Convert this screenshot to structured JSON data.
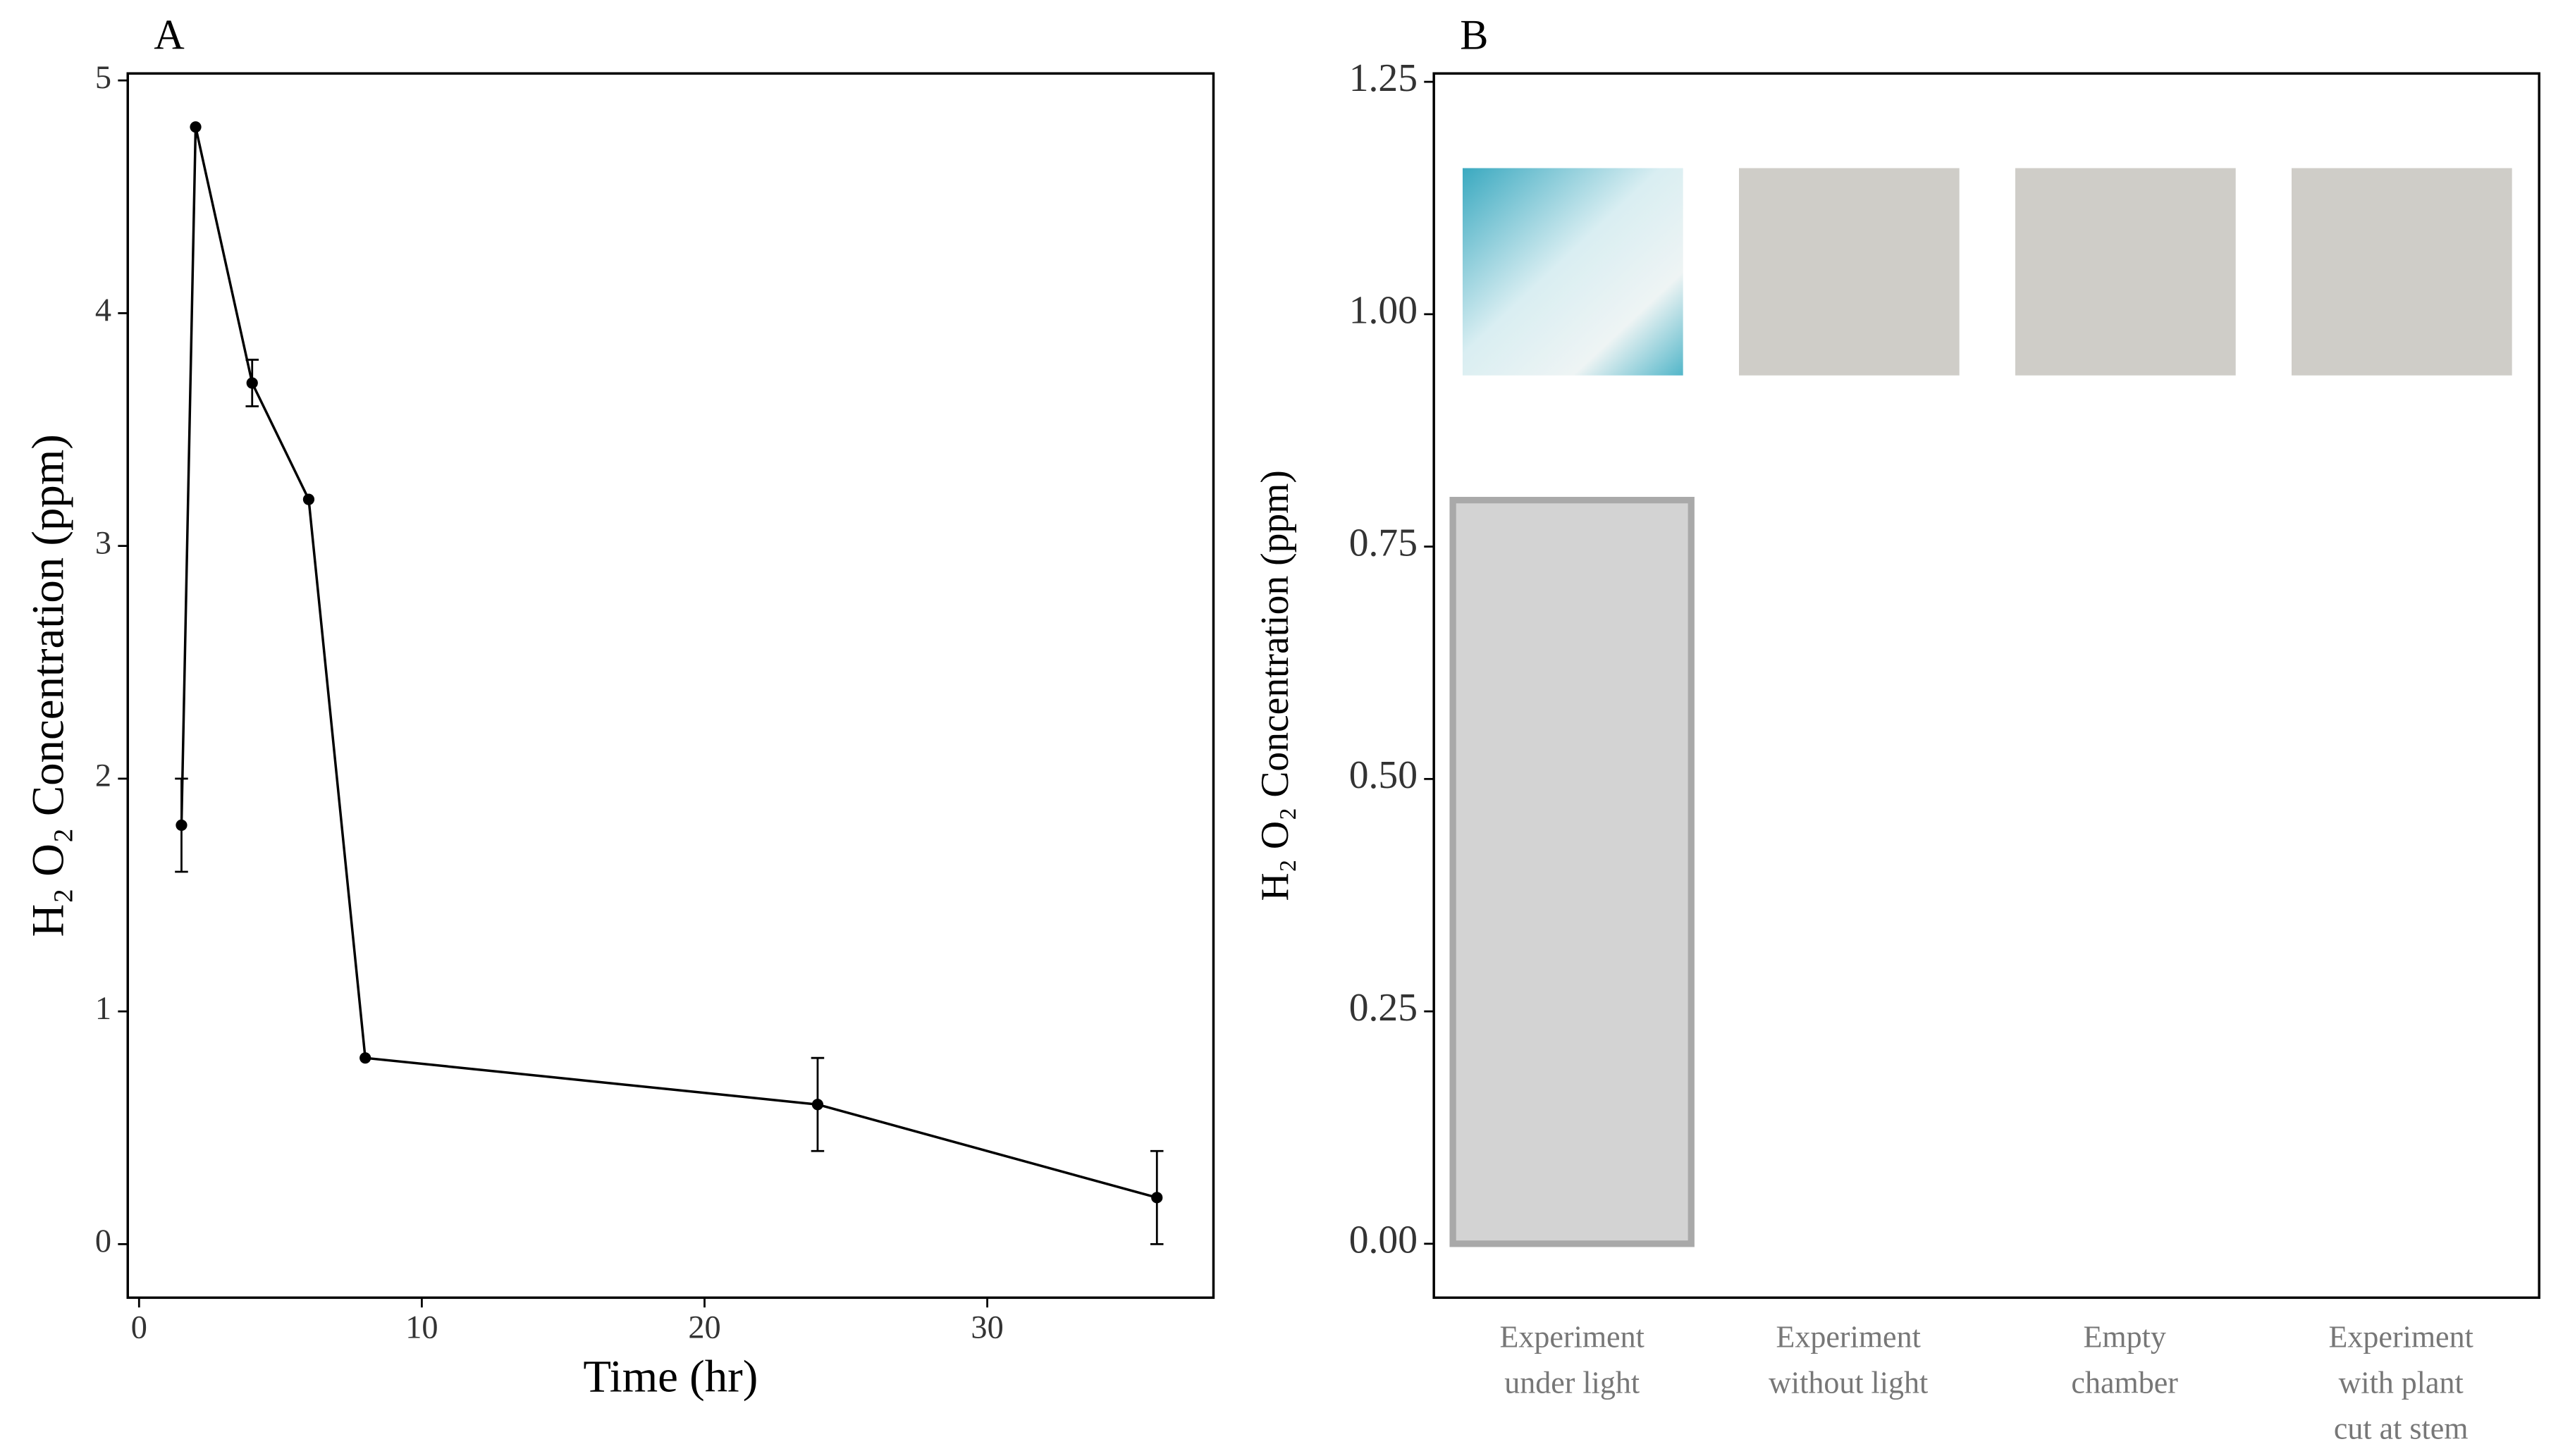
{
  "chart_data": [
    {
      "type": "line",
      "panel_label": "A",
      "x_label": "Time (hr)",
      "y_label": "H₂ O₂ Concentration (ppm)",
      "x": [
        1.5,
        2,
        4,
        6,
        8,
        24,
        36
      ],
      "values": [
        1.8,
        4.8,
        3.7,
        3.2,
        0.8,
        0.6,
        0.2
      ],
      "errors": [
        0.2,
        0,
        0.1,
        0,
        0,
        0.2,
        0.2
      ],
      "color": "#000000",
      "xlim": [
        -0.4,
        38
      ],
      "ylim": [
        -0.23,
        5.03
      ],
      "xticks": [
        0,
        10,
        20,
        30
      ],
      "yticks": [
        0,
        1,
        2,
        3,
        4,
        5
      ]
    },
    {
      "type": "bar",
      "panel_label": "B",
      "y_label": "H₂ O₂ Concentration (ppm)",
      "categories": [
        [
          "Experiment",
          "under light"
        ],
        [
          "Experiment",
          "without light"
        ],
        [
          "Empty",
          "chamber"
        ],
        [
          "Experiment",
          "with plant",
          "cut at stem"
        ]
      ],
      "values": [
        0.8,
        0,
        0,
        0
      ],
      "color": "#d3d3d3",
      "ylim": [
        -0.058,
        1.259
      ],
      "yticks": [
        {
          "value": 0,
          "label": "0.00"
        },
        {
          "value": 0.25,
          "label": "0.25"
        },
        {
          "value": 0.5,
          "label": "0.50"
        },
        {
          "value": 0.75,
          "label": "0.75"
        },
        {
          "value": 1,
          "label": "1.00"
        },
        {
          "value": 1.25,
          "label": "1.25"
        }
      ]
    }
  ]
}
